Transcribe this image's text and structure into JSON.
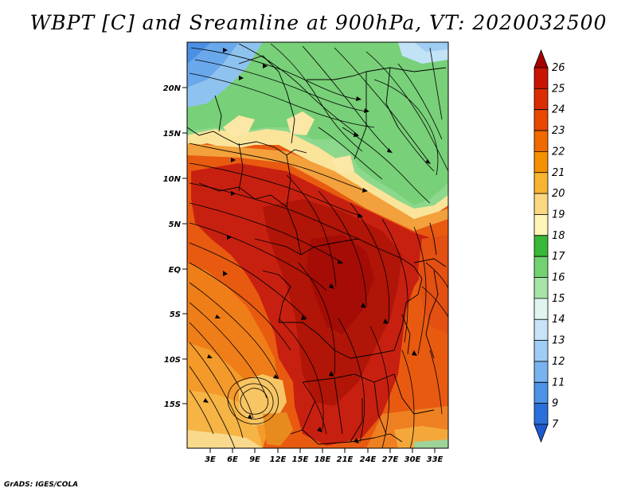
{
  "title": "WBPT [C] and Sreamline at 900hPa, VT: 2020032500",
  "credit": "GrADS: IGES/COLA",
  "map": {
    "lat_labels": [
      "20N",
      "15N",
      "10N",
      "5N",
      "EQ",
      "5S",
      "10S",
      "15S"
    ],
    "lon_labels": [
      "3E",
      "6E",
      "9E",
      "12E",
      "15E",
      "18E",
      "21E",
      "24E",
      "27E",
      "30E",
      "33E"
    ]
  },
  "colorbar": {
    "levels": [
      "26",
      "25",
      "24",
      "23",
      "22",
      "21",
      "20",
      "19",
      "18",
      "17",
      "16",
      "15",
      "14",
      "13",
      "12",
      "11",
      "9",
      "7"
    ],
    "colors": [
      "#a50000",
      "#c81400",
      "#dc2d00",
      "#e84800",
      "#f06a00",
      "#f59000",
      "#f8b430",
      "#fad880",
      "#fff4b8",
      "#38b838",
      "#72d272",
      "#a8e4a8",
      "#e0f4f0",
      "#c8e2f8",
      "#a0cbf5",
      "#78b2f0",
      "#4c92e6",
      "#2a70dc",
      "#1e5ad0"
    ]
  }
}
